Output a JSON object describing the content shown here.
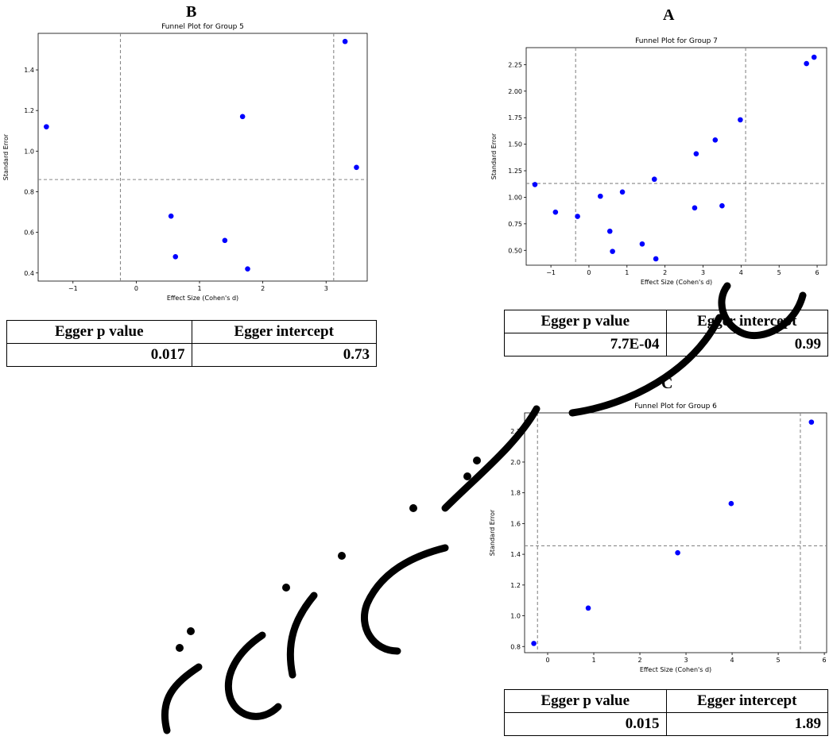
{
  "panels": [
    {
      "id": "B",
      "letter": "B",
      "egger": {
        "p_header": "Egger p value",
        "i_header": "Egger intercept",
        "p_value": "0.017",
        "intercept": "0.73"
      }
    },
    {
      "id": "A",
      "letter": "A",
      "egger": {
        "p_header": "Egger p value",
        "i_header": "Egger intercept",
        "p_value": "7.7E-04",
        "intercept": "0.99"
      }
    },
    {
      "id": "C",
      "letter": "C",
      "egger": {
        "p_header": "Egger p value",
        "i_header": "Egger intercept",
        "p_value": "0.015",
        "intercept": "1.89"
      }
    }
  ],
  "chart_data": [
    {
      "panel": "B",
      "type": "scatter",
      "title": "Funnel Plot for Group 5",
      "xlabel": "Effect Size (Cohen's d)",
      "ylabel": "Standard Error",
      "xlim": [
        -1.55,
        3.65
      ],
      "ylim": [
        0.36,
        1.58
      ],
      "xticks": [
        -1,
        0,
        1,
        2,
        3
      ],
      "yticks": [
        0.4,
        0.6,
        0.8,
        1.0,
        1.2,
        1.4
      ],
      "ytick_labels": [
        "0.4",
        "0.6",
        "0.8",
        "1.0",
        "1.2",
        "1.4"
      ],
      "vlines": [
        -0.25,
        3.12
      ],
      "hlines": [
        0.86
      ],
      "marker_color": "#0000ff",
      "points": [
        {
          "x": -1.42,
          "y": 1.12
        },
        {
          "x": 1.68,
          "y": 1.17
        },
        {
          "x": 3.48,
          "y": 0.92
        },
        {
          "x": 0.55,
          "y": 0.68
        },
        {
          "x": 1.4,
          "y": 0.56
        },
        {
          "x": 0.62,
          "y": 0.48
        },
        {
          "x": 1.76,
          "y": 0.42
        },
        {
          "x": 3.3,
          "y": 1.54
        }
      ]
    },
    {
      "panel": "A",
      "type": "scatter",
      "title": "Funnel Plot for Group 7",
      "xlabel": "Effect Size (Cohen's d)",
      "ylabel": "Standard Error",
      "xlim": [
        -1.65,
        6.25
      ],
      "ylim": [
        0.36,
        2.41
      ],
      "xticks": [
        -1,
        0,
        1,
        2,
        3,
        4,
        5,
        6
      ],
      "yticks": [
        0.5,
        0.75,
        1.0,
        1.25,
        1.5,
        1.75,
        2.0,
        2.25
      ],
      "ytick_labels": [
        "0.50",
        "0.75",
        "1.00",
        "1.25",
        "1.50",
        "1.75",
        "2.00",
        "2.25"
      ],
      "vlines": [
        -0.35,
        4.12
      ],
      "hlines": [
        1.13
      ],
      "marker_color": "#0000ff",
      "points": [
        {
          "x": -1.42,
          "y": 1.12
        },
        {
          "x": -0.88,
          "y": 0.86
        },
        {
          "x": -0.3,
          "y": 0.82
        },
        {
          "x": 0.3,
          "y": 1.01
        },
        {
          "x": 0.88,
          "y": 1.05
        },
        {
          "x": 0.55,
          "y": 0.68
        },
        {
          "x": 0.62,
          "y": 0.49
        },
        {
          "x": 1.4,
          "y": 0.56
        },
        {
          "x": 1.72,
          "y": 1.17
        },
        {
          "x": 1.76,
          "y": 0.42
        },
        {
          "x": 2.82,
          "y": 1.41
        },
        {
          "x": 2.78,
          "y": 0.9
        },
        {
          "x": 3.32,
          "y": 1.54
        },
        {
          "x": 3.5,
          "y": 0.92
        },
        {
          "x": 3.98,
          "y": 1.73
        },
        {
          "x": 5.72,
          "y": 2.26
        },
        {
          "x": 5.92,
          "y": 2.32
        }
      ]
    },
    {
      "panel": "C",
      "type": "scatter",
      "title": "Funnel Plot for Group 6",
      "xlabel": "Effect Size (Cohen's d)",
      "ylabel": "Standard Error",
      "xlim": [
        -0.5,
        6.05
      ],
      "ylim": [
        0.76,
        2.32
      ],
      "xticks": [
        0,
        1,
        2,
        3,
        4,
        5,
        6
      ],
      "yticks": [
        0.8,
        1.0,
        1.2,
        1.4,
        1.6,
        1.8,
        2.0,
        2.2
      ],
      "ytick_labels": [
        "0.8",
        "1.0",
        "1.2",
        "1.4",
        "1.6",
        "1.8",
        "2.0",
        "2.2"
      ],
      "vlines": [
        -0.22,
        5.48
      ],
      "hlines": [
        1.455
      ],
      "marker_color": "#0000ff",
      "points": [
        {
          "x": -0.3,
          "y": 0.82
        },
        {
          "x": 0.88,
          "y": 1.05
        },
        {
          "x": 2.82,
          "y": 1.41
        },
        {
          "x": 3.98,
          "y": 1.73
        },
        {
          "x": 5.72,
          "y": 2.26
        }
      ]
    }
  ]
}
